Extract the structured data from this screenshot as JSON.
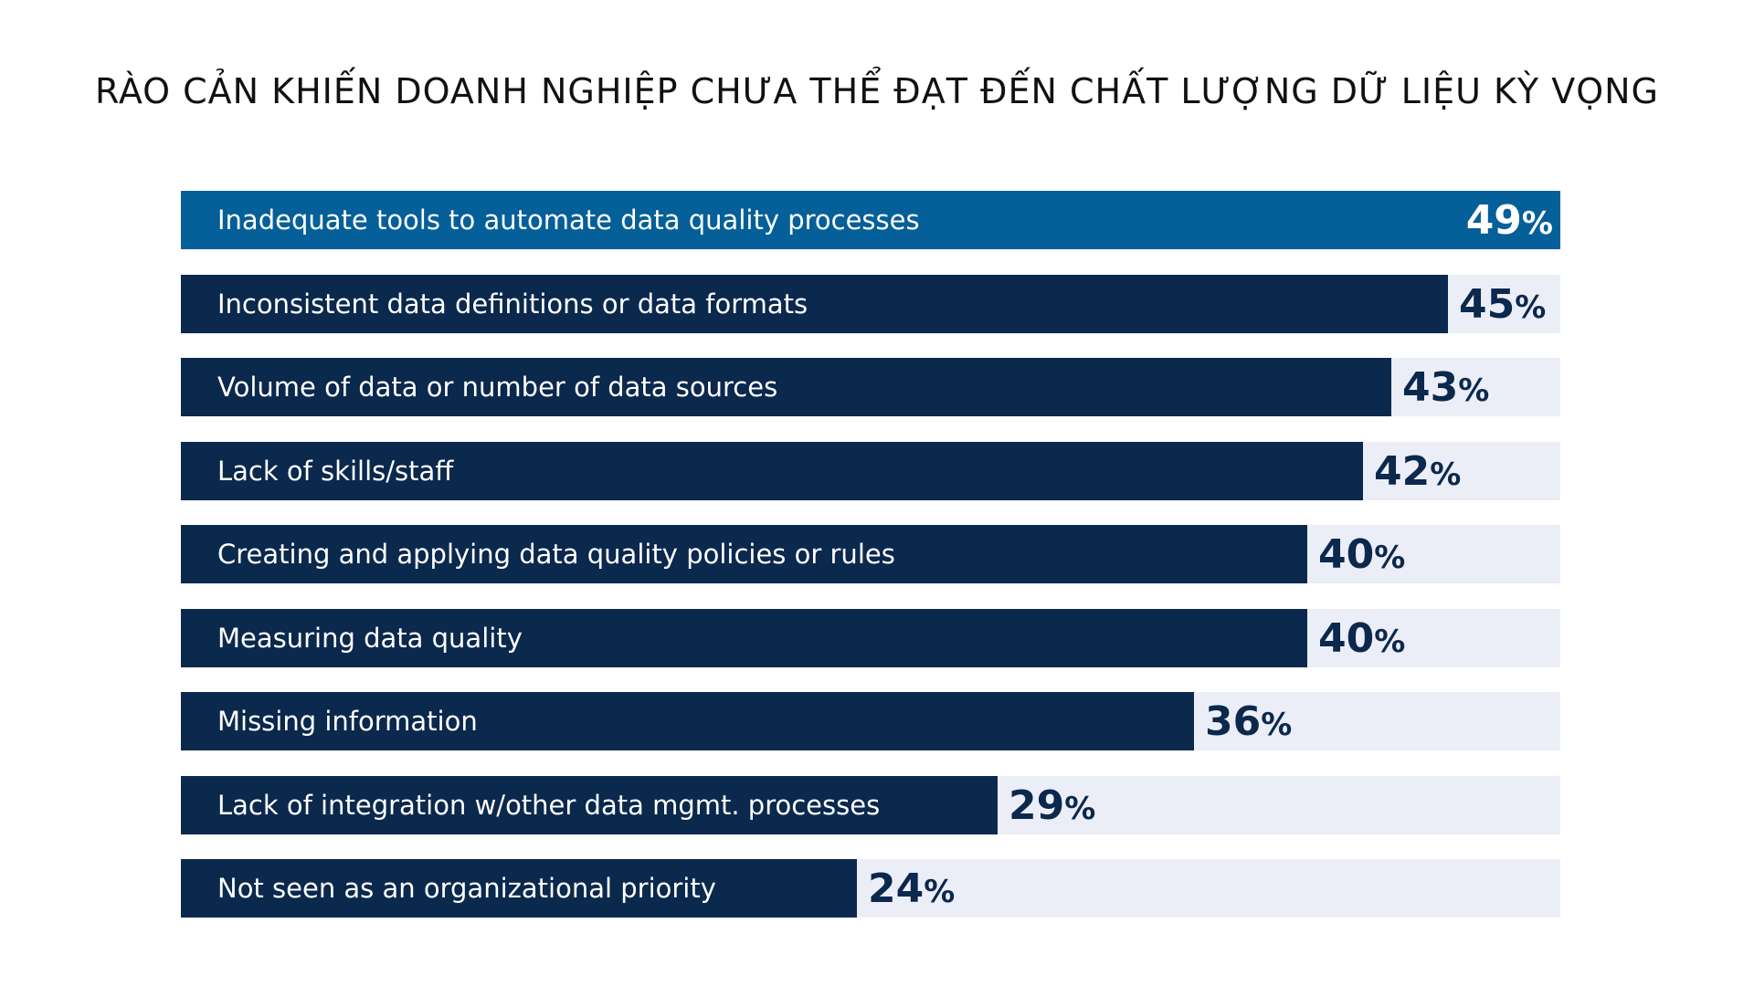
{
  "chart_data": {
    "type": "bar",
    "orientation": "horizontal",
    "title": "RÀO CẢN KHIẾN DOANH NGHIỆP CHƯA THỂ ĐẠT ĐẾN CHẤT LƯỢNG DỮ LIỆU KỲ VỌNG",
    "categories": [
      "Inadequate tools to automate data quality processes",
      "Inconsistent data definitions or data formats",
      "Volume of data or number of data sources",
      "Lack of skills/staff",
      "Creating and applying data quality policies or rules",
      "Measuring data quality",
      "Missing information",
      "Lack of integration w/other data mgmt. processes",
      "Not seen as an organizational priority"
    ],
    "values": [
      49,
      45,
      43,
      42,
      40,
      40,
      36,
      29,
      24
    ],
    "value_suffix": "%",
    "xlim": [
      0,
      49
    ],
    "xlabel": "",
    "ylabel": "",
    "grid": false,
    "colors": {
      "bar": "#0b284d",
      "highlight_bar": "#055f98",
      "track": "#eceef7",
      "title": "#111111"
    },
    "highlight_index": 0
  }
}
